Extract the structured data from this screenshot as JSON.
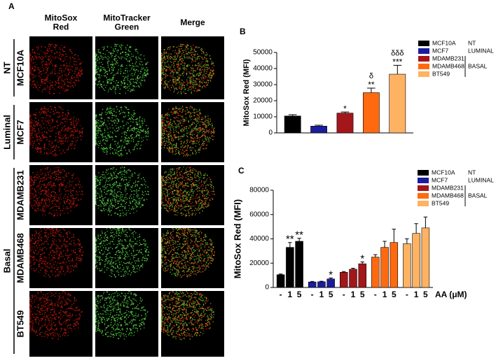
{
  "panel_a": {
    "label": "A",
    "columns": [
      "MitoSox\nRed",
      "MitoTracker\nGreen",
      "Merge"
    ],
    "groups": [
      "NT",
      "Luminal",
      "Basal"
    ],
    "rows": [
      "MCF10A",
      "MCF7",
      "MDAMB231",
      "MDAMB468",
      "BT549"
    ]
  },
  "chart_data": [
    {
      "type": "bar",
      "panel": "B",
      "y_label": "MitoSox Red (MFI)",
      "ylim": [
        0,
        50000
      ],
      "yticks": [
        0,
        10000,
        20000,
        30000,
        40000,
        50000
      ],
      "series": [
        {
          "name": "MCF10A",
          "color": "#000000",
          "values": [
            10500
          ],
          "errors": [
            800
          ],
          "significance": [
            null
          ],
          "significance_2": [
            null
          ]
        },
        {
          "name": "MCF7",
          "color": "#1c1c9c",
          "values": [
            4200
          ],
          "errors": [
            600
          ],
          "significance": [
            null
          ],
          "significance_2": [
            null
          ]
        },
        {
          "name": "MDAMB231",
          "color": "#a3161a",
          "values": [
            12300
          ],
          "errors": [
            700
          ],
          "significance": [
            "*"
          ],
          "significance_2": [
            null
          ]
        },
        {
          "name": "MDAMB468",
          "color": "#ff6a10",
          "values": [
            25000
          ],
          "errors": [
            2800
          ],
          "significance": [
            "**"
          ],
          "significance_2": [
            "δ"
          ]
        },
        {
          "name": "BT549",
          "color": "#ffb262",
          "values": [
            36500
          ],
          "errors": [
            5500
          ],
          "significance": [
            "***"
          ],
          "significance_2": [
            "δδδ"
          ]
        }
      ],
      "groups": [
        {
          "name": "NT",
          "size": 1
        },
        {
          "name": "LUMINAL",
          "size": 1
        },
        {
          "name": "BASAL",
          "size": 3
        }
      ]
    },
    {
      "type": "bar",
      "panel": "C",
      "y_label": "MitoSox Red  (MFI)",
      "x_label": "AA (μM)",
      "categories": [
        "-",
        "1",
        "5"
      ],
      "ylim": [
        0,
        80000
      ],
      "yticks": [
        0,
        20000,
        40000,
        60000,
        80000
      ],
      "series": [
        {
          "name": "MCF10A",
          "color": "#000000",
          "values": [
            10500,
            33000,
            38000
          ],
          "errors": [
            600,
            4000,
            2500
          ],
          "significance": [
            null,
            "**",
            "**"
          ]
        },
        {
          "name": "MCF7",
          "color": "#1c1c9c",
          "values": [
            4500,
            4700,
            7000
          ],
          "errors": [
            500,
            400,
            800
          ],
          "significance": [
            null,
            null,
            "*"
          ]
        },
        {
          "name": "MDAMB231",
          "color": "#a3161a",
          "values": [
            12500,
            15000,
            19500
          ],
          "errors": [
            600,
            800,
            1500
          ],
          "significance": [
            null,
            null,
            "*"
          ]
        },
        {
          "name": "MDAMB468",
          "color": "#ff6a10",
          "values": [
            25000,
            33000,
            37000
          ],
          "errors": [
            2000,
            5000,
            11000
          ],
          "significance": [
            null,
            null,
            null
          ]
        },
        {
          "name": "BT549",
          "color": "#ffb262",
          "values": [
            36000,
            44500,
            49000
          ],
          "errors": [
            4000,
            8000,
            9000
          ],
          "significance": [
            null,
            null,
            null
          ]
        }
      ],
      "groups": [
        {
          "name": "NT",
          "size": 1
        },
        {
          "name": "LUMINAL",
          "size": 1
        },
        {
          "name": "BASAL",
          "size": 3
        }
      ]
    }
  ]
}
